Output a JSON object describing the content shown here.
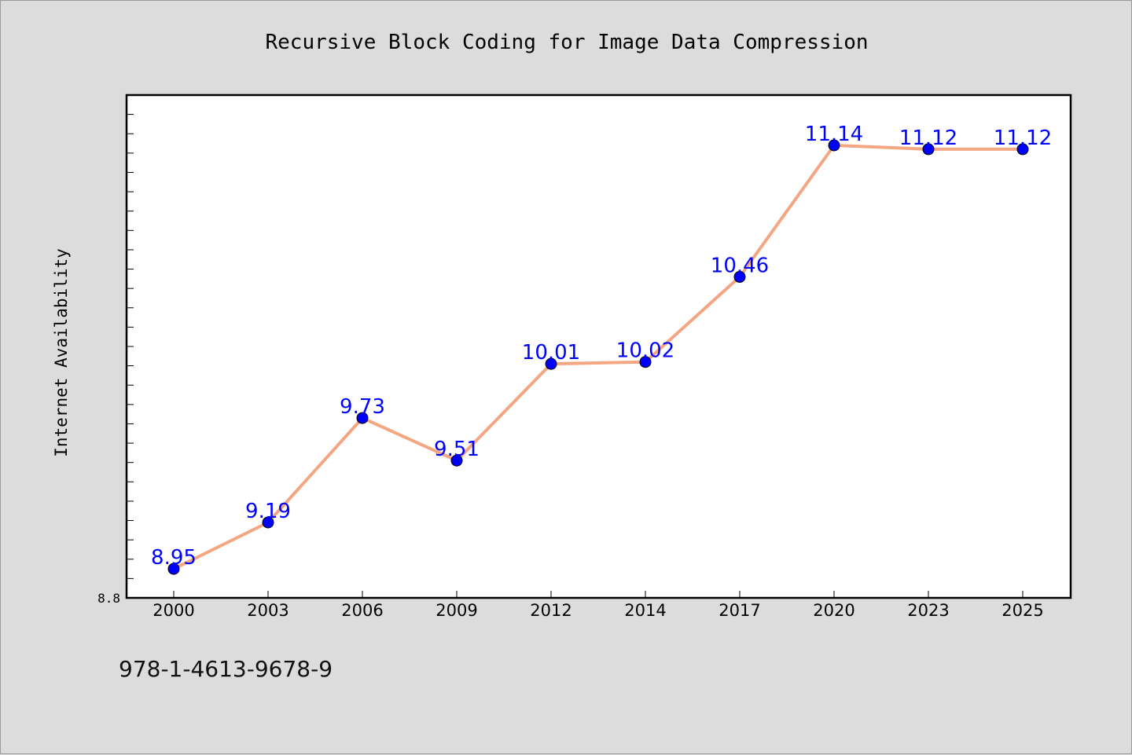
{
  "chart_data": {
    "type": "line",
    "title": "Recursive Block Coding for Image Data Compression",
    "ylabel": "Internet Availability",
    "xlabel": "",
    "categories": [
      "2000",
      "2003",
      "2006",
      "2009",
      "2012",
      "2014",
      "2017",
      "2020",
      "2023",
      "2025"
    ],
    "series": [
      {
        "values": [
          8.95,
          9.19,
          9.73,
          9.51,
          10.01,
          10.02,
          10.46,
          11.14,
          11.12,
          11.12
        ]
      }
    ],
    "data_labels": [
      "8.95",
      "9.19",
      "9.73",
      "9.51",
      "10.01",
      "10.02",
      "10.46",
      "11.14",
      "11.12",
      "11.12"
    ],
    "ylim": [
      8.8,
      11.4
    ],
    "y_tick_labels": [
      "8.8"
    ],
    "y_minor_step": 0.1,
    "grid": false,
    "legend": "none",
    "colors": {
      "line": "#f4a582",
      "marker": "#0000ff",
      "marker_edge": "#000000",
      "label": "#0000ff",
      "plot_bg": "#ffffff",
      "page_bg": "#dcdcdc"
    }
  },
  "footer": {
    "code": "978-1-4613-9678-9"
  }
}
